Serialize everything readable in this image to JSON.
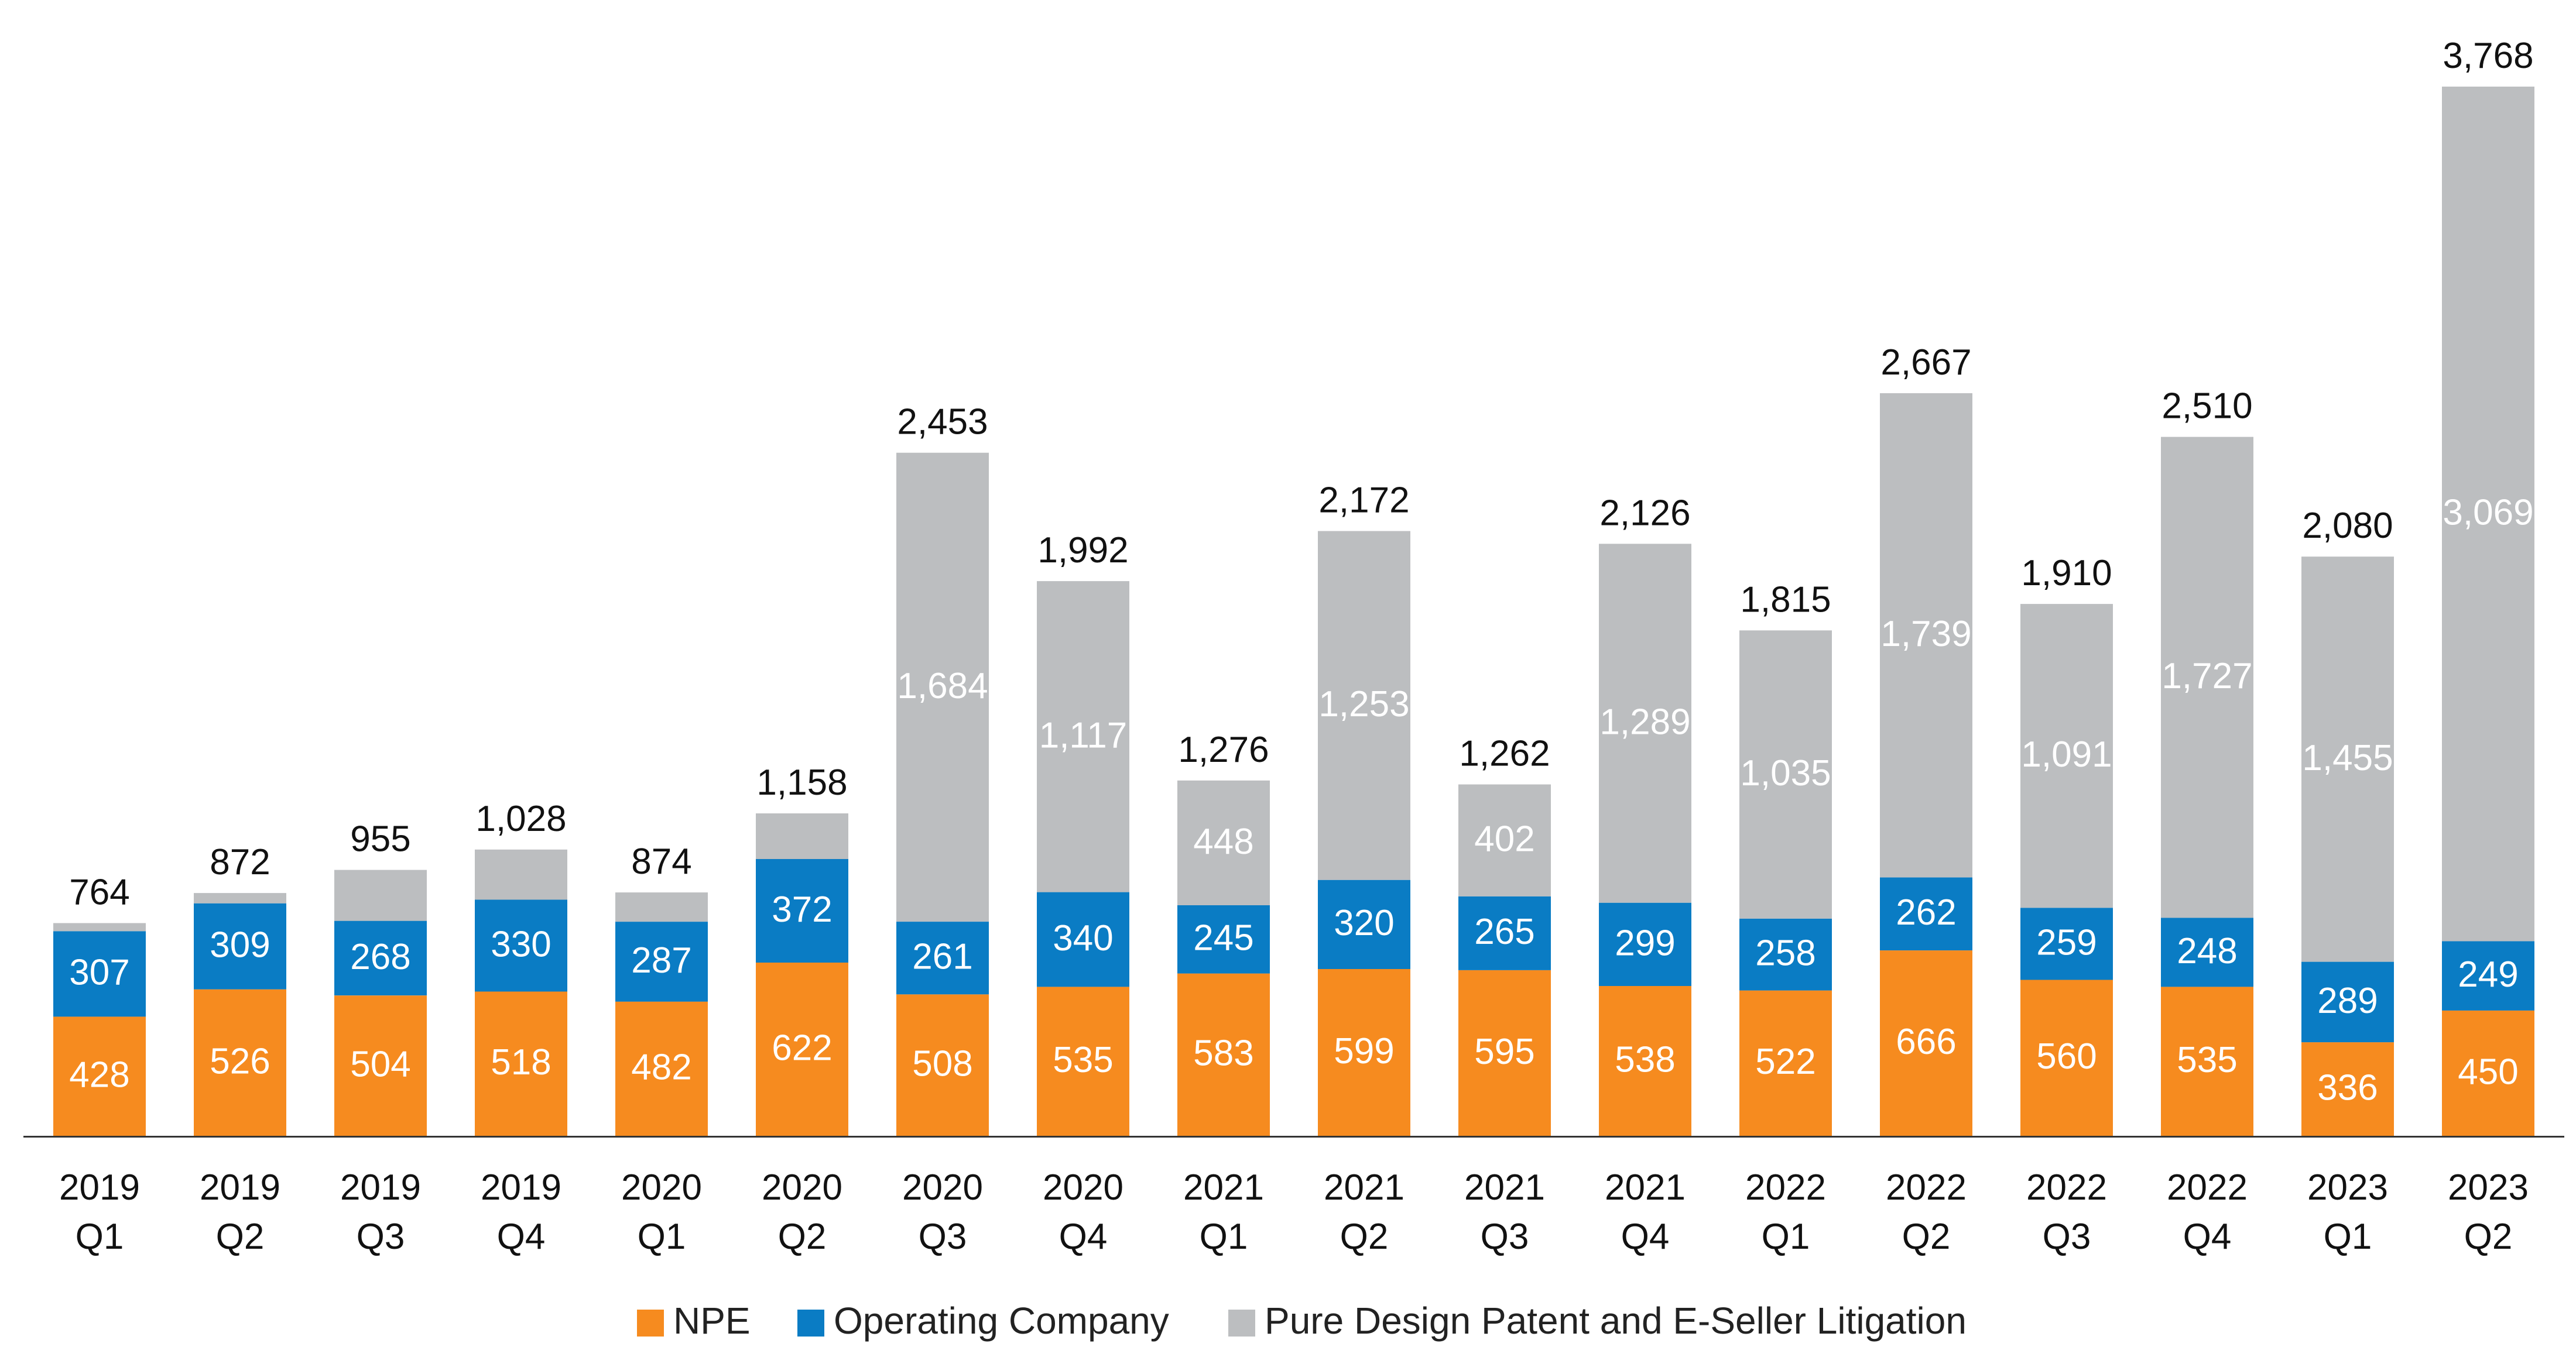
{
  "chart_data": {
    "type": "bar",
    "stacked": true,
    "categories": [
      "2019 Q1",
      "2019 Q2",
      "2019 Q3",
      "2019 Q4",
      "2020 Q1",
      "2020 Q2",
      "2020 Q3",
      "2020 Q4",
      "2021 Q1",
      "2021 Q2",
      "2021 Q3",
      "2021 Q4",
      "2022 Q1",
      "2022 Q2",
      "2022 Q3",
      "2022 Q4",
      "2023 Q1",
      "2023 Q2"
    ],
    "category_lines": [
      [
        "2019",
        "Q1"
      ],
      [
        "2019",
        "Q2"
      ],
      [
        "2019",
        "Q3"
      ],
      [
        "2019",
        "Q4"
      ],
      [
        "2020",
        "Q1"
      ],
      [
        "2020",
        "Q2"
      ],
      [
        "2020",
        "Q3"
      ],
      [
        "2020",
        "Q4"
      ],
      [
        "2021",
        "Q1"
      ],
      [
        "2021",
        "Q2"
      ],
      [
        "2021",
        "Q3"
      ],
      [
        "2021",
        "Q4"
      ],
      [
        "2022",
        "Q1"
      ],
      [
        "2022",
        "Q2"
      ],
      [
        "2022",
        "Q3"
      ],
      [
        "2022",
        "Q4"
      ],
      [
        "2023",
        "Q1"
      ],
      [
        "2023",
        "Q2"
      ]
    ],
    "series": [
      {
        "name": "NPE",
        "color": "#f68b1f",
        "values": [
          428,
          526,
          504,
          518,
          482,
          622,
          508,
          535,
          583,
          599,
          595,
          538,
          522,
          666,
          560,
          535,
          336,
          450
        ]
      },
      {
        "name": "Operating Company",
        "color": "#0a7cc4",
        "values": [
          307,
          309,
          268,
          330,
          287,
          372,
          261,
          340,
          245,
          320,
          265,
          299,
          258,
          262,
          259,
          248,
          289,
          249
        ]
      },
      {
        "name": "Pure Design Patent and E-Seller Litigation",
        "color": "#bcbec0",
        "values": [
          29,
          37,
          183,
          180,
          105,
          164,
          1684,
          1117,
          448,
          1253,
          402,
          1289,
          1035,
          1739,
          1091,
          1727,
          1455,
          3069
        ]
      }
    ],
    "segment_labels": [
      [
        "428",
        "526",
        "504",
        "518",
        "482",
        "622",
        "508",
        "535",
        "583",
        "599",
        "595",
        "538",
        "522",
        "666",
        "560",
        "535",
        "336",
        "450"
      ],
      [
        "307",
        "309",
        "268",
        "330",
        "287",
        "372",
        "261",
        "340",
        "245",
        "320",
        "265",
        "299",
        "258",
        "262",
        "259",
        "248",
        "289",
        "249"
      ],
      [
        "",
        "",
        "",
        "",
        "",
        "",
        "1,684",
        "1,117",
        "448",
        "1,253",
        "402",
        "1,289",
        "1,035",
        "1,739",
        "1,091",
        "1,727",
        "1,455",
        "3,069"
      ]
    ],
    "totals": [
      764,
      872,
      955,
      1028,
      874,
      1158,
      2453,
      1992,
      1276,
      2172,
      1262,
      2126,
      1815,
      2667,
      1910,
      2510,
      2080,
      3768
    ],
    "total_labels": [
      "764",
      "872",
      "955",
      "1,028",
      "874",
      "1,158",
      "2,453",
      "1,992",
      "1,276",
      "2,172",
      "1,262",
      "2,126",
      "1,815",
      "2,667",
      "1,910",
      "2,510",
      "2,080",
      "3,768"
    ],
    "ylim": [
      0,
      3768
    ],
    "grid": false,
    "legend_position": "bottom-center",
    "title": "",
    "xlabel": "",
    "ylabel": ""
  }
}
